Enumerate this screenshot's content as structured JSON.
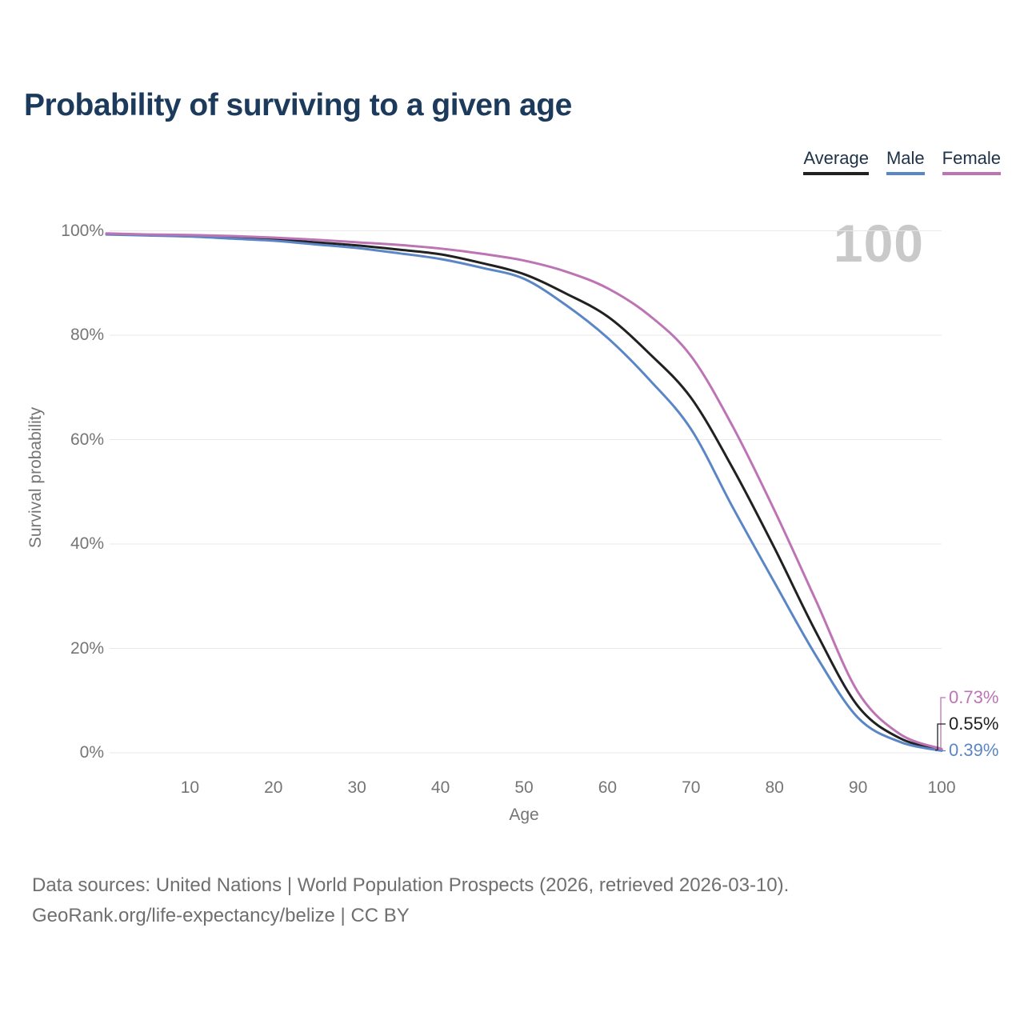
{
  "header": {
    "title": "Probability of surviving to a given age"
  },
  "watermark": "100",
  "chart_data": {
    "type": "line",
    "title": "Probability of surviving to a given age",
    "xlabel": "Age",
    "ylabel": "Survival probability",
    "xlim": [
      0,
      100
    ],
    "ylim": [
      0,
      100
    ],
    "grid": true,
    "legend_position": "top-right",
    "x_ticks": [
      10,
      20,
      30,
      40,
      50,
      60,
      70,
      80,
      90,
      100
    ],
    "x_tick_labels": [
      "10",
      "20",
      "30",
      "40",
      "50",
      "60",
      "70",
      "80",
      "90",
      "100"
    ],
    "y_ticks": [
      0,
      20,
      40,
      60,
      80,
      100
    ],
    "y_tick_labels": [
      "0%",
      "20%",
      "40%",
      "60%",
      "80%",
      "100%"
    ],
    "x": [
      0,
      5,
      10,
      15,
      20,
      25,
      30,
      35,
      40,
      45,
      50,
      55,
      60,
      65,
      70,
      75,
      80,
      85,
      90,
      95,
      100
    ],
    "series": [
      {
        "name": "Average",
        "color": "#212121",
        "end_label": "0.55%",
        "values": [
          99.4,
          99.2,
          99.0,
          98.7,
          98.4,
          97.8,
          97.2,
          96.4,
          95.5,
          93.8,
          91.7,
          88.0,
          83.6,
          76.5,
          68.0,
          54.5,
          39.2,
          23.0,
          8.9,
          2.8,
          0.55
        ]
      },
      {
        "name": "Male",
        "color": "#5b86c6",
        "end_label": "0.39%",
        "values": [
          99.3,
          99.1,
          98.9,
          98.5,
          98.1,
          97.4,
          96.7,
          95.7,
          94.6,
          92.9,
          90.8,
          85.8,
          79.5,
          71.5,
          62.0,
          47.0,
          32.6,
          18.5,
          6.7,
          2.1,
          0.39
        ]
      },
      {
        "name": "Female",
        "color": "#bd74b5",
        "end_label": "0.73%",
        "values": [
          99.5,
          99.3,
          99.2,
          99.0,
          98.7,
          98.3,
          97.8,
          97.3,
          96.6,
          95.6,
          94.3,
          92.2,
          89.0,
          83.8,
          76.0,
          62.5,
          46.4,
          29.0,
          11.6,
          3.6,
          0.73
        ]
      }
    ]
  },
  "footer": {
    "line1": "Data sources: United Nations | World Population Prospects (2026, retrieved 2026-03-10).",
    "line2": "GeoRank.org/life-expectancy/belize | CC BY"
  }
}
